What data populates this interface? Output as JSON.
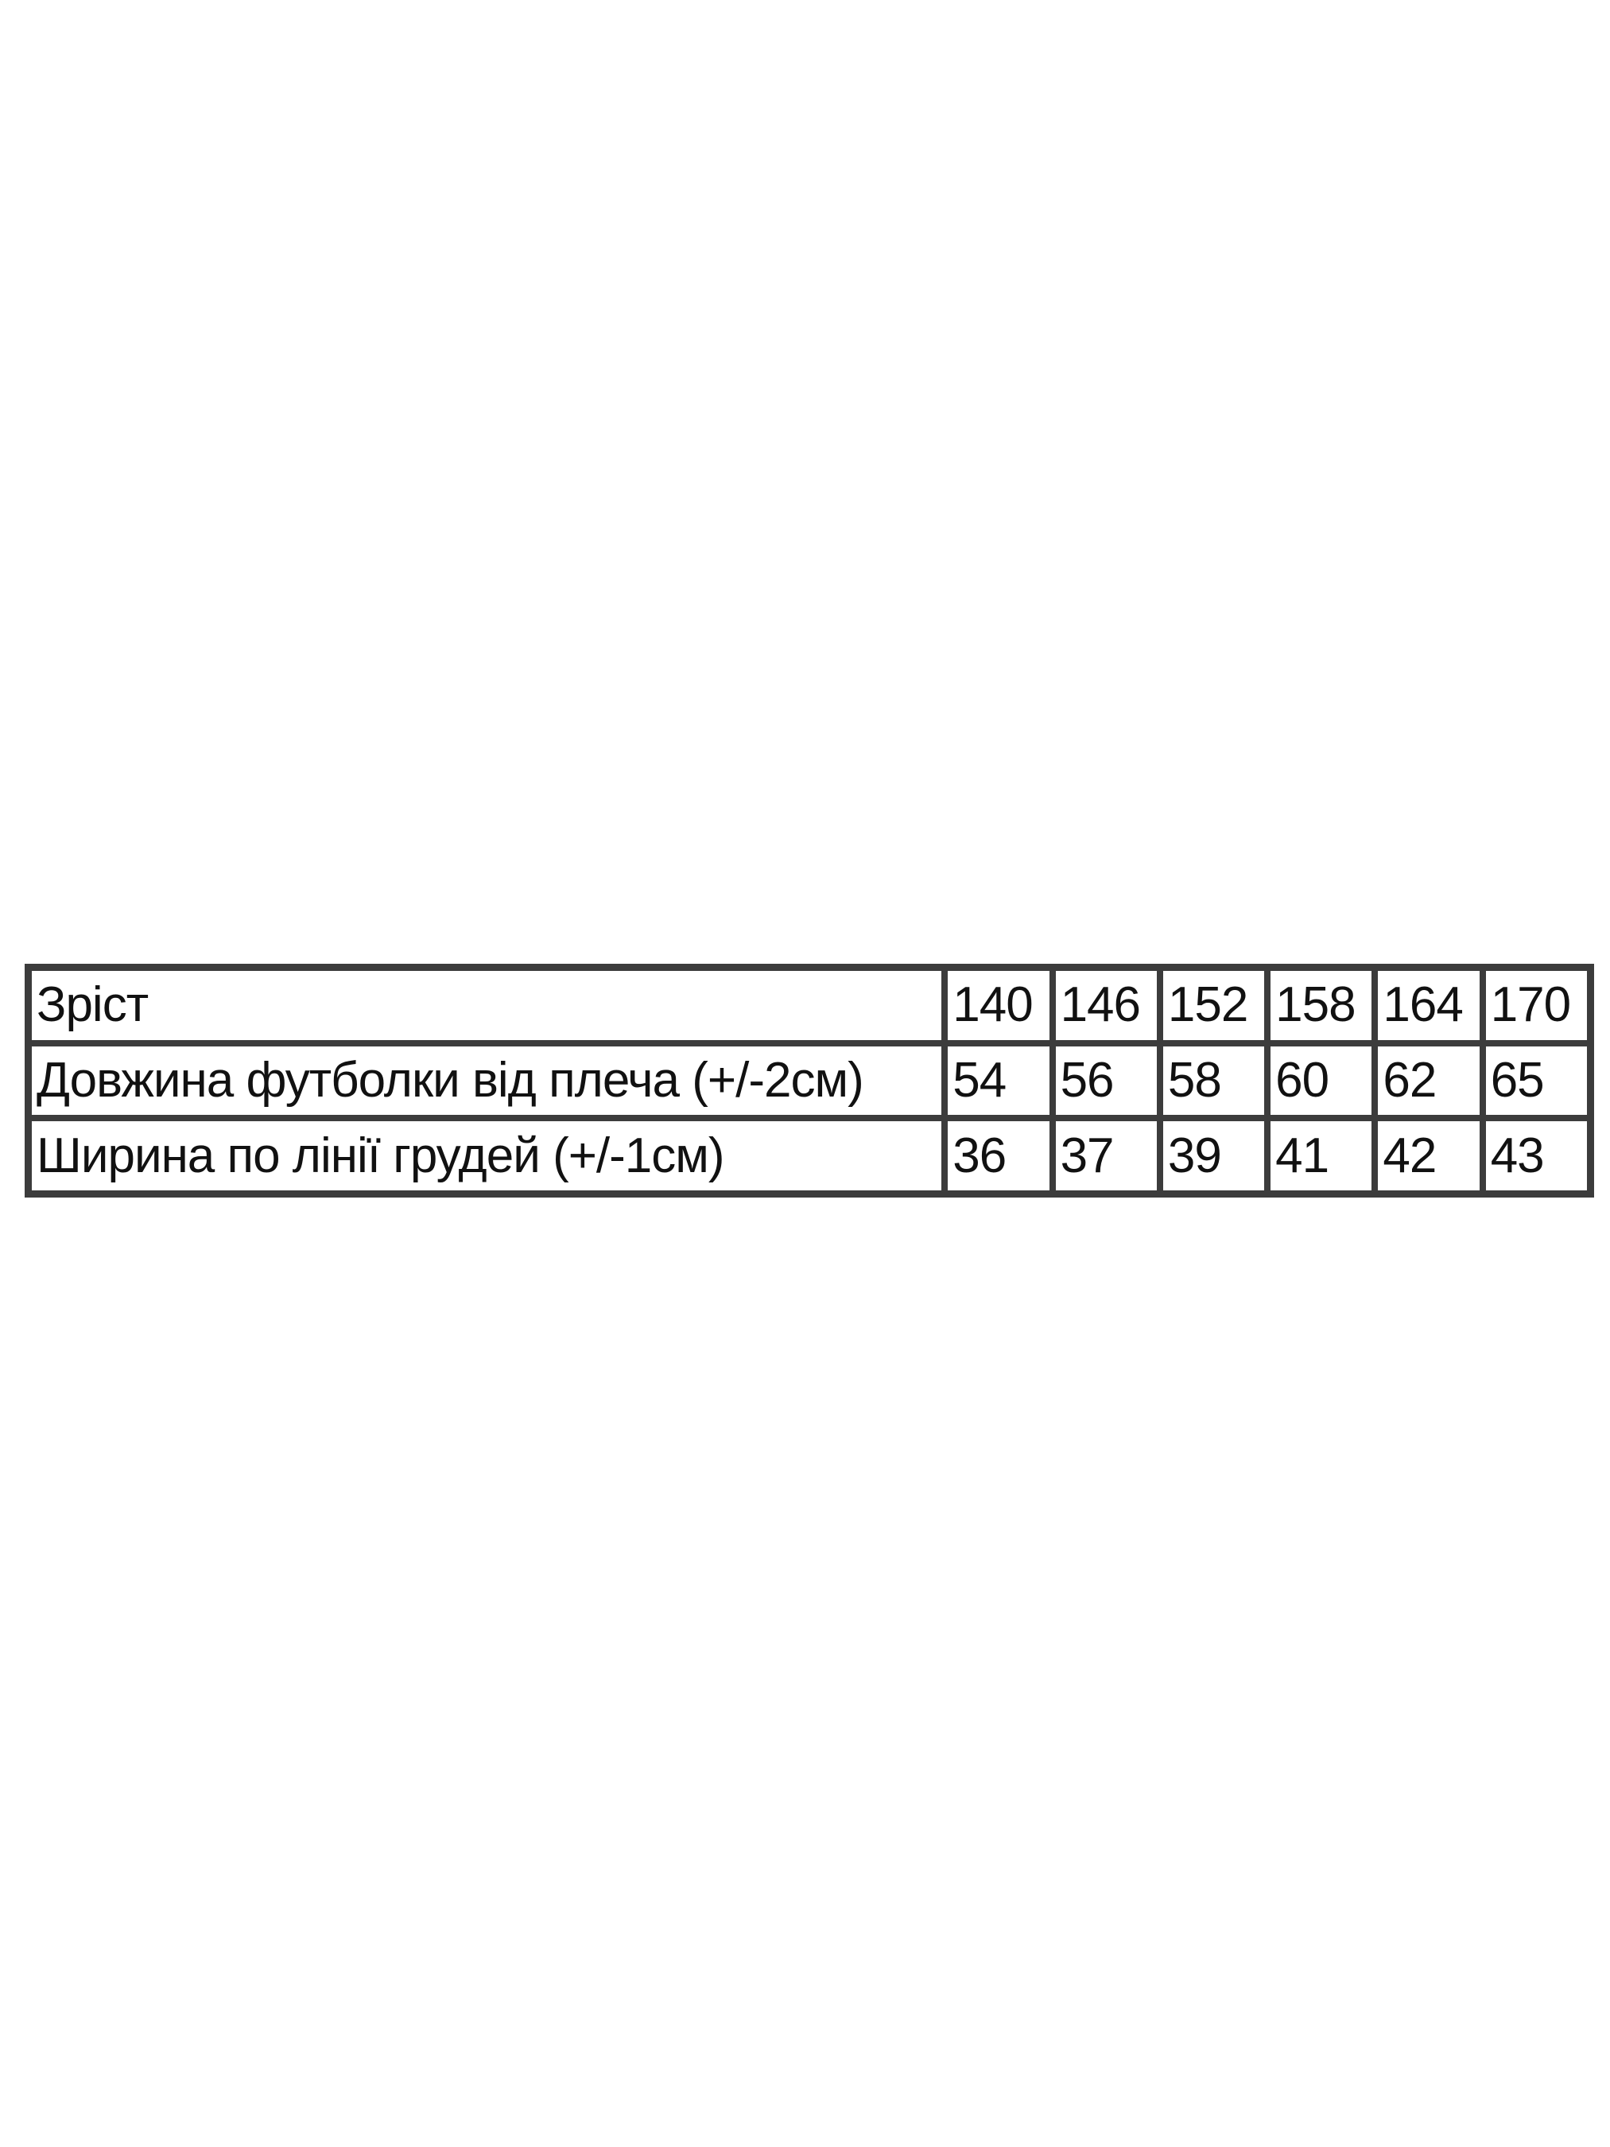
{
  "size_table": {
    "rows": [
      {
        "label": "Зріст",
        "values": [
          "140",
          "146",
          "152",
          "158",
          "164",
          "170"
        ]
      },
      {
        "label": "Довжина футболки від плеча (+/-2см)",
        "values": [
          "54",
          "56",
          "58",
          "60",
          "62",
          "65"
        ]
      },
      {
        "label": "Ширина по лінії грудей (+/-1см)",
        "values": [
          "36",
          "37",
          "39",
          "41",
          "42",
          "43"
        ]
      }
    ]
  }
}
